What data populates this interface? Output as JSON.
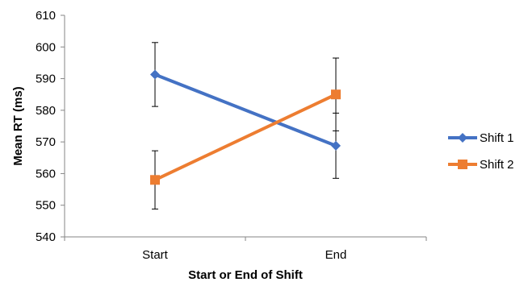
{
  "chart_data": {
    "type": "line",
    "title": "",
    "xlabel": "Start or End of Shift",
    "ylabel": "Mean RT (ms)",
    "categories": [
      "Start",
      "End"
    ],
    "ylim": [
      540,
      610
    ],
    "yticks": [
      540,
      550,
      560,
      570,
      580,
      590,
      600,
      610
    ],
    "grid": false,
    "legend_position": "right",
    "series": [
      {
        "name": "Shift 1",
        "values": [
          591.3,
          568.8
        ],
        "errors": [
          10.1,
          10.3
        ],
        "marker": "diamond",
        "color": "#4472C4"
      },
      {
        "name": "Shift 2",
        "values": [
          558.0,
          585.0
        ],
        "errors": [
          9.2,
          11.5
        ],
        "marker": "square",
        "color": "#ED7D31"
      }
    ]
  }
}
